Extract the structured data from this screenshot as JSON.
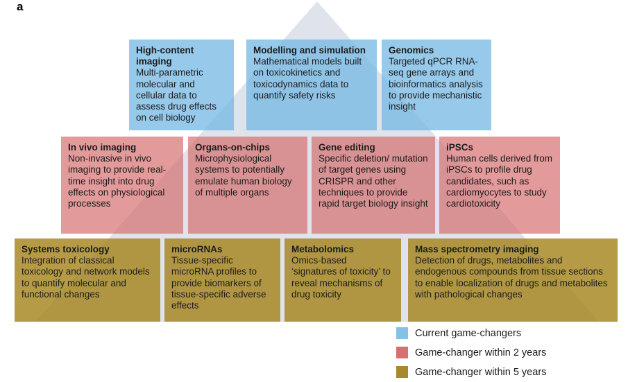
{
  "panel_label": "a",
  "colors": {
    "current_blue": "#85c1e6",
    "two_year_red": "#d66f6f",
    "five_year_gold": "#a8882e",
    "triangle_gray": "#dfe3ec",
    "text": "#1c1c1c"
  },
  "tiers": [
    {
      "category": "Current game-changers",
      "boxes": [
        {
          "title": "High-content imaging",
          "body": "Multi-parametric molecular and cellular data to assess drug effects on cell biology"
        },
        {
          "title": "Modelling and simulation",
          "body": "Mathematical models built on toxicokinetics and toxicodynamics data to quantify safety risks"
        },
        {
          "title": "Genomics",
          "body": "Targeted qPCR RNA-seq gene arrays and bioinformatics analysis to provide mechanistic insight"
        }
      ]
    },
    {
      "category": "Game-changer within 2 years",
      "boxes": [
        {
          "title": "In vivo imaging",
          "body": "Non-invasive in vivo imaging to provide real-time insight into drug effects on physiological processes"
        },
        {
          "title": "Organs-on-chips",
          "body": "Microphysiological systems to potentially emulate human biology of multiple organs"
        },
        {
          "title": "Gene editing",
          "body": "Specific deletion/ mutation of target genes using CRISPR and other techniques to provide rapid target biology insight"
        },
        {
          "title": "iPSCs",
          "body": "Human cells derived from iPSCs to profile drug candidates, such as cardiomyocytes to study cardiotoxicity"
        }
      ]
    },
    {
      "category": "Game-changer within 5 years",
      "boxes": [
        {
          "title": "Systems toxicology",
          "body": "Integration of classical toxicology and network models to quantify molecular and functional changes"
        },
        {
          "title": "microRNAs",
          "body": "Tissue-specific microRNA profiles to provide biomarkers of tissue-specific adverse effects"
        },
        {
          "title": "Metabolomics",
          "body": "Omics-based ‘signatures of toxicity’ to reveal mechanisms of drug toxicity"
        },
        {
          "title": "Mass spectrometry imaging",
          "body": "Detection of drugs, metabolites and endogenous compounds from tissue sections to enable localization of drugs and metabolites with pathological changes"
        }
      ]
    }
  ],
  "legend": {
    "items": [
      {
        "label": "Current game-changers",
        "color": "#85c1e6"
      },
      {
        "label": "Game-changer within 2 years",
        "color": "#d66f6f"
      },
      {
        "label": "Game-changer within 5 years",
        "color": "#a8882e"
      }
    ]
  }
}
